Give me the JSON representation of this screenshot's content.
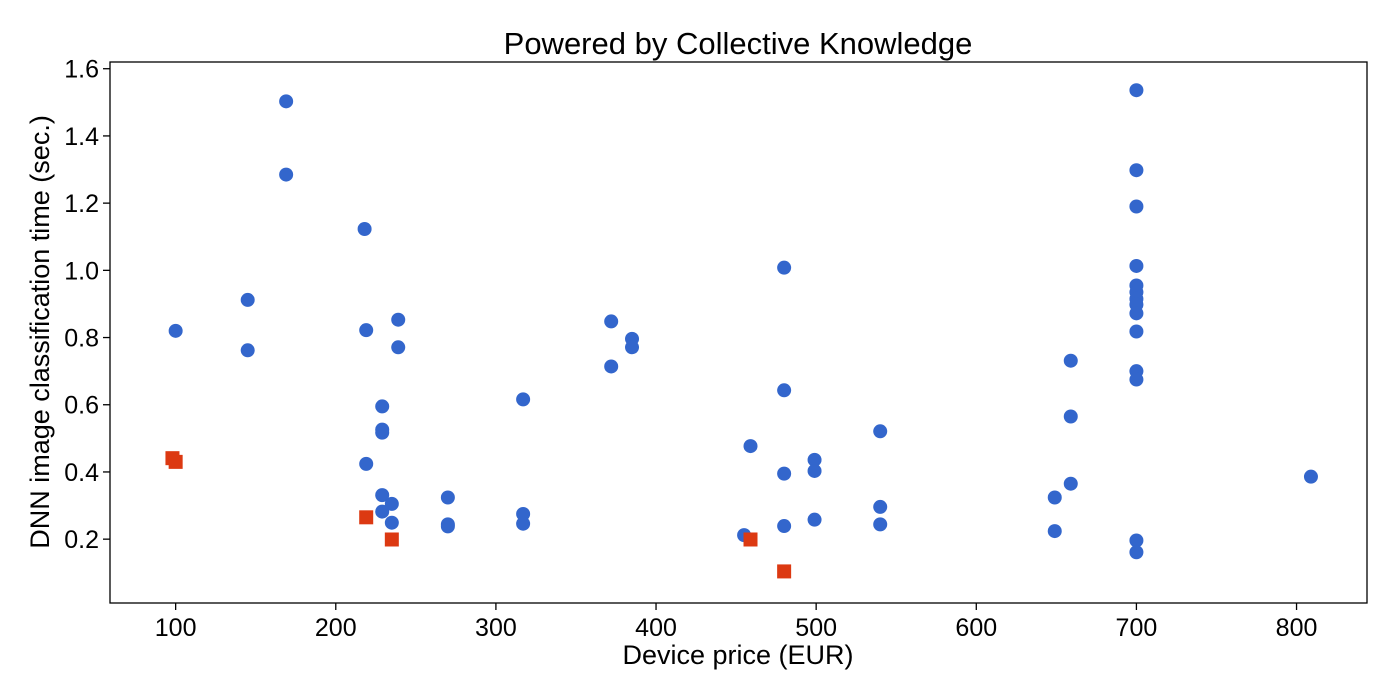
{
  "chart_data": {
    "type": "scatter",
    "title": "Powered by Collective Knowledge",
    "xlabel": "Device price (EUR)",
    "ylabel": "DNN image classification time (sec.)",
    "xlim": [
      59,
      844
    ],
    "ylim": [
      0.01,
      1.62
    ],
    "xticks": [
      100,
      200,
      300,
      400,
      500,
      600,
      700,
      800
    ],
    "yticks": [
      0.2,
      0.4,
      0.6,
      0.8,
      1.0,
      1.2,
      1.4,
      1.6
    ],
    "xtick_labels": [
      "100",
      "200",
      "300",
      "400",
      "500",
      "600",
      "700",
      "800"
    ],
    "ytick_labels": [
      "0.2",
      "0.4",
      "0.6",
      "0.8",
      "1.0",
      "1.2",
      "1.4",
      "1.6"
    ],
    "grid": false,
    "series": [
      {
        "marker": "circle",
        "color": "#3366cc",
        "points": [
          [
            100,
            0.82
          ],
          [
            145,
            0.912
          ],
          [
            145,
            0.762
          ],
          [
            169,
            1.503
          ],
          [
            169,
            1.285
          ],
          [
            218,
            1.123
          ],
          [
            219,
            0.822
          ],
          [
            219,
            0.424
          ],
          [
            229,
            0.595
          ],
          [
            229,
            0.526
          ],
          [
            229,
            0.517
          ],
          [
            229,
            0.331
          ],
          [
            229,
            0.282
          ],
          [
            235,
            0.305
          ],
          [
            235,
            0.249
          ],
          [
            239,
            0.853
          ],
          [
            239,
            0.771
          ],
          [
            270,
            0.324
          ],
          [
            270,
            0.244
          ],
          [
            270,
            0.238
          ],
          [
            317,
            0.616
          ],
          [
            317,
            0.275
          ],
          [
            317,
            0.246
          ],
          [
            372,
            0.848
          ],
          [
            372,
            0.714
          ],
          [
            385,
            0.796
          ],
          [
            385,
            0.771
          ],
          [
            455,
            0.212
          ],
          [
            459,
            0.477
          ],
          [
            480,
            1.008
          ],
          [
            480,
            0.643
          ],
          [
            480,
            0.395
          ],
          [
            480,
            0.239
          ],
          [
            499,
            0.436
          ],
          [
            499,
            0.403
          ],
          [
            499,
            0.258
          ],
          [
            540,
            0.521
          ],
          [
            540,
            0.296
          ],
          [
            540,
            0.244
          ],
          [
            649,
            0.324
          ],
          [
            649,
            0.224
          ],
          [
            659,
            0.731
          ],
          [
            659,
            0.565
          ],
          [
            659,
            0.365
          ],
          [
            700,
            1.536
          ],
          [
            700,
            1.298
          ],
          [
            700,
            1.19
          ],
          [
            700,
            1.013
          ],
          [
            700,
            0.955
          ],
          [
            700,
            0.935
          ],
          [
            700,
            0.915
          ],
          [
            700,
            0.898
          ],
          [
            700,
            0.872
          ],
          [
            700,
            0.818
          ],
          [
            700,
            0.7
          ],
          [
            700,
            0.675
          ],
          [
            700,
            0.196
          ],
          [
            700,
            0.161
          ],
          [
            809,
            0.386
          ]
        ]
      },
      {
        "marker": "square",
        "color": "#dc3912",
        "points": [
          [
            98,
            0.441
          ],
          [
            100,
            0.43
          ],
          [
            219,
            0.265
          ],
          [
            235,
            0.199
          ],
          [
            459,
            0.199
          ],
          [
            480,
            0.104
          ]
        ]
      }
    ]
  }
}
